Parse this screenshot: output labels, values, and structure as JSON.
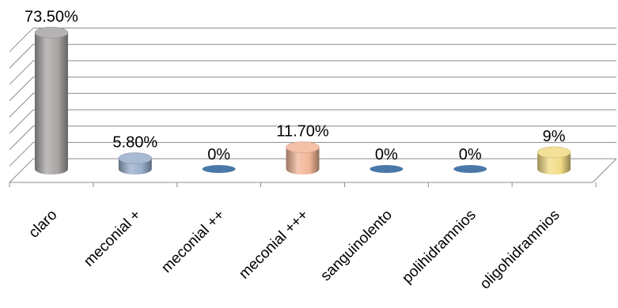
{
  "chart_data": {
    "type": "bar",
    "style": "3d-cylinder",
    "categories": [
      "claro",
      "meconial +",
      "meconial ++",
      "meconial +++",
      "sanguinolento",
      "polihidramnios",
      "oligohidramnios"
    ],
    "values": [
      73.5,
      5.8,
      0,
      11.7,
      0,
      0,
      9
    ],
    "data_labels": [
      "73.50%",
      "5.80%",
      "0%",
      "11.70%",
      "0%",
      "0%",
      "9%"
    ],
    "colors": [
      "#a8a4a4",
      "#9aaecb",
      "#4a78a8",
      "#f2b597",
      "#4a78a8",
      "#4a78a8",
      "#f2dc86"
    ],
    "title": "",
    "xlabel": "",
    "ylabel": "",
    "ylim": [
      0,
      80
    ],
    "grid": true,
    "legend": "none"
  }
}
